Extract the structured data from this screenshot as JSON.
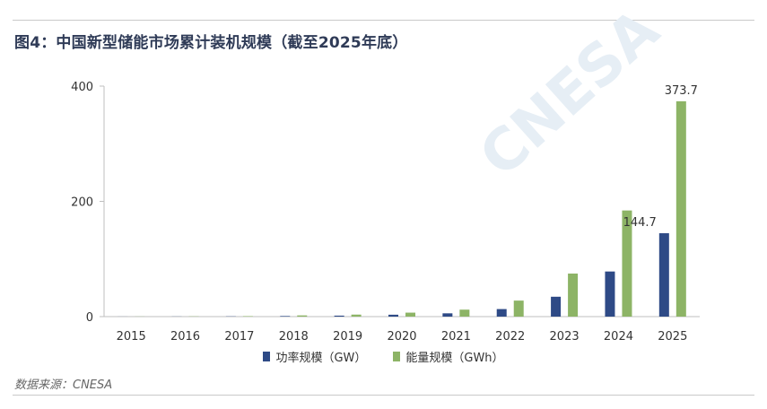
{
  "header": {
    "title": "图4：中国新型储能市场累计装机规模（截至2025年底）"
  },
  "watermark": {
    "text": "CNESA"
  },
  "footer": {
    "source": "数据来源：CNESA"
  },
  "colors": {
    "power": "#2e4a86",
    "energy": "#8db466",
    "axis": "#bfbfbf"
  },
  "chart_data": {
    "type": "bar",
    "categories": [
      "2015",
      "2016",
      "2017",
      "2018",
      "2019",
      "2020",
      "2021",
      "2022",
      "2023",
      "2024",
      "2025"
    ],
    "series": [
      {
        "name": "功率规模（GW）",
        "values": [
          0.1,
          0.2,
          0.4,
          1.0,
          1.7,
          3.3,
          5.7,
          13.1,
          34.5,
          78.3,
          144.7
        ]
      },
      {
        "name": "能量规模（GWh）",
        "values": [
          0.2,
          0.4,
          0.8,
          2.1,
          3.5,
          6.9,
          12.1,
          27.8,
          74.7,
          184.2,
          373.7
        ]
      }
    ],
    "data_labels": [
      {
        "series": 0,
        "index": 10,
        "text": "144.7"
      },
      {
        "series": 1,
        "index": 10,
        "text": "373.7"
      }
    ],
    "yticks": [
      0,
      200,
      400
    ],
    "ylim": [
      0,
      400
    ],
    "title": "",
    "xlabel": "",
    "ylabel": "",
    "legend": "bottom-center",
    "grid": false
  }
}
